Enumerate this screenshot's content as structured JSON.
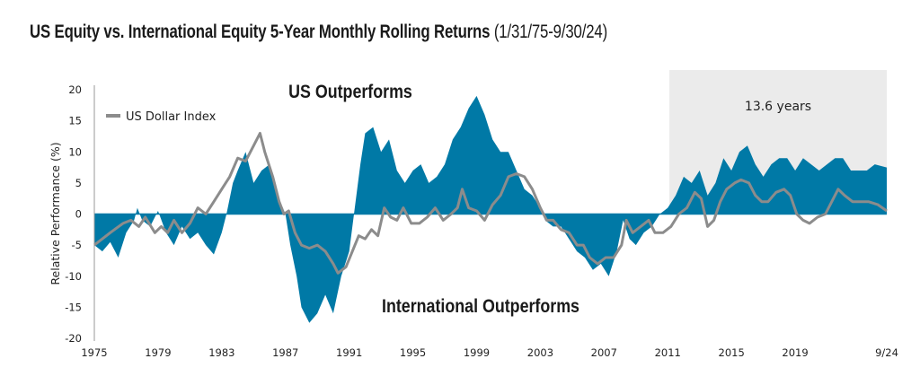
{
  "title": {
    "main": "US Equity vs. International Equity 5-Year Monthly Rolling Returns",
    "range": "(1/31/75-9/30/24)"
  },
  "chart_data": {
    "type": "area",
    "title": "US Equity vs. International Equity 5-Year Monthly Rolling Returns (1/31/75-9/30/24)",
    "xlabel": "",
    "ylabel": "Relative Performance (%)",
    "xlim": [
      1975,
      2024.75
    ],
    "ylim": [
      -20,
      20
    ],
    "yticks": [
      20,
      15,
      10,
      5,
      0,
      -5,
      -10,
      -15,
      -20
    ],
    "xticks": [
      {
        "value": 1975,
        "label": "1975"
      },
      {
        "value": 1979,
        "label": "1979"
      },
      {
        "value": 1983,
        "label": "1983"
      },
      {
        "value": 1987,
        "label": "1987"
      },
      {
        "value": 1991,
        "label": "1991"
      },
      {
        "value": 1995,
        "label": "1995"
      },
      {
        "value": 1999,
        "label": "1999"
      },
      {
        "value": 2003,
        "label": "2003"
      },
      {
        "value": 2007,
        "label": "2007"
      },
      {
        "value": 2011,
        "label": "2011"
      },
      {
        "value": 2015,
        "label": "2015"
      },
      {
        "value": 2019,
        "label": "2019"
      },
      {
        "value": 2024.75,
        "label": "9/24"
      }
    ],
    "grid": false,
    "legend": {
      "position": "top-left",
      "entries": [
        "US Dollar Index"
      ]
    },
    "annotations": {
      "top": "US Outperforms",
      "bottom": "International Outperforms",
      "shaded_label": "13.6 years"
    },
    "shaded_region": {
      "x": [
        2011.1,
        2024.75
      ],
      "color": "#ebebeb"
    },
    "series": [
      {
        "type": "area",
        "color": "#0079a6",
        "x": [
          1975,
          1975.5,
          1976,
          1976.5,
          1977,
          1977.5,
          1977.7,
          1978,
          1978.5,
          1979,
          1979.5,
          1980,
          1980.5,
          1981,
          1981.5,
          1982,
          1982.5,
          1983,
          1983.3,
          1983.7,
          1984,
          1984.5,
          1985,
          1985.5,
          1986,
          1986.5,
          1987,
          1987.3,
          1987.7,
          1988,
          1988.5,
          1989,
          1989.5,
          1990,
          1990.5,
          1991,
          1991.3,
          1991.7,
          1992,
          1992.5,
          1993,
          1993.5,
          1994,
          1994.5,
          1995,
          1995.5,
          1996,
          1996.5,
          1997,
          1997.5,
          1998,
          1998.5,
          1999,
          1999.5,
          2000,
          2000.5,
          2001,
          2001.5,
          2002,
          2002.5,
          2003,
          2003.3,
          2003.8,
          2004.3,
          2004.8,
          2005.3,
          2005.8,
          2006.3,
          2006.8,
          2007.3,
          2007.8,
          2008.2,
          2008.6,
          2009,
          2009.5,
          2010,
          2010.5,
          2011,
          2011.5,
          2012,
          2012.5,
          2013,
          2013.5,
          2014,
          2014.5,
          2015,
          2015.5,
          2016,
          2016.5,
          2017,
          2017.5,
          2018,
          2018.5,
          2019,
          2019.5,
          2020,
          2020.5,
          2021,
          2021.5,
          2022,
          2022.5,
          2023,
          2023.5,
          2024,
          2024.75
        ],
        "values": [
          -5,
          -6,
          -4.5,
          -7,
          -3,
          -1,
          1,
          -1,
          -2,
          0.5,
          -3,
          -5,
          -2,
          -4,
          -3,
          -5,
          -6.5,
          -3,
          0,
          5,
          7,
          10,
          5,
          7,
          8,
          3,
          0,
          -5,
          -10,
          -15,
          -17.5,
          -16,
          -13,
          -16,
          -10,
          -6,
          0,
          8,
          13,
          14,
          10,
          12,
          7,
          5,
          7,
          8,
          5,
          6,
          8,
          12,
          14,
          17,
          19,
          16,
          12,
          10,
          10,
          7,
          4,
          3,
          1,
          -1,
          -2,
          -2,
          -4,
          -6,
          -7,
          -9,
          -8,
          -10,
          -6,
          -1,
          -4,
          -5,
          -3,
          -2,
          0,
          1,
          3,
          6,
          5,
          7,
          3,
          5,
          9,
          7,
          10,
          11,
          8,
          6,
          8,
          9,
          9,
          7,
          9,
          8,
          7,
          8,
          9,
          9,
          7,
          7,
          7,
          8,
          7.5
        ]
      },
      {
        "type": "line",
        "name": "US Dollar Index",
        "color": "#8c8c8c",
        "x": [
          1975,
          1976,
          1976.8,
          1977.3,
          1977.8,
          1978.2,
          1978.8,
          1979.2,
          1979.6,
          1980,
          1980.5,
          1981,
          1981.5,
          1982,
          1982.5,
          1983,
          1983.5,
          1984,
          1984.5,
          1985,
          1985.4,
          1985.7,
          1986.2,
          1986.6,
          1986.9,
          1987.2,
          1987.6,
          1988,
          1988.5,
          1989,
          1989.5,
          1990,
          1990.3,
          1990.8,
          1991.2,
          1991.6,
          1992,
          1992.4,
          1992.8,
          1993.2,
          1993.6,
          1994,
          1994.4,
          1994.9,
          1995.4,
          1995.9,
          1996.4,
          1996.9,
          1997.4,
          1997.8,
          1998.1,
          1998.5,
          1999,
          1999.5,
          2000,
          2000.5,
          2001,
          2001.5,
          2002,
          2002.5,
          2003,
          2003.4,
          2003.8,
          2004.3,
          2004.8,
          2005.3,
          2005.7,
          2006.1,
          2006.6,
          2007.1,
          2007.6,
          2008.1,
          2008.4,
          2008.8,
          2009.3,
          2009.8,
          2010.2,
          2010.7,
          2011.2,
          2011.7,
          2012.2,
          2012.7,
          2013.1,
          2013.5,
          2013.9,
          2014.3,
          2014.7,
          2015.2,
          2015.6,
          2016.1,
          2016.5,
          2016.9,
          2017.3,
          2017.8,
          2018.3,
          2018.7,
          2019.1,
          2019.5,
          2019.9,
          2020.4,
          2020.9,
          2021.3,
          2021.7,
          2022.1,
          2022.6,
          2023.1,
          2023.6,
          2024.2,
          2024.75
        ],
        "values": [
          -5,
          -3,
          -1.5,
          -1,
          -2,
          -0.5,
          -3,
          -2,
          -3,
          -1,
          -3,
          -1.5,
          1,
          0,
          2,
          4,
          6,
          9,
          8.5,
          11,
          13,
          10,
          6,
          2,
          0,
          0.5,
          -3,
          -5,
          -5.5,
          -5,
          -6,
          -8,
          -9.5,
          -8.5,
          -6,
          -3.5,
          -4,
          -2.5,
          -3.5,
          1,
          -0.5,
          -1,
          1,
          -1.5,
          -1.5,
          -0.5,
          1,
          -1,
          0,
          1,
          4,
          1,
          0.5,
          -1,
          1.5,
          3,
          6,
          6.5,
          6,
          4,
          1,
          -1,
          -1,
          -2.5,
          -3,
          -5,
          -5,
          -7,
          -8,
          -7,
          -7,
          -5,
          -1,
          -3,
          -2,
          -1,
          -3,
          -3,
          -2,
          0,
          1,
          3.5,
          2.5,
          -2,
          -1,
          2,
          4,
          5,
          5.5,
          5,
          3,
          2,
          2,
          3.5,
          4,
          3,
          0,
          -1,
          -1.5,
          -0.5,
          0,
          2,
          4,
          3,
          2,
          2,
          2,
          1.5,
          0.5
        ]
      }
    ]
  }
}
